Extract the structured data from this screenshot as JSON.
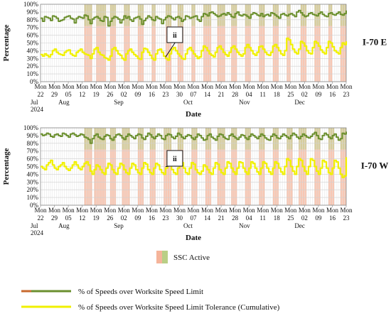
{
  "chart_data": {
    "type": "line",
    "x_axis": {
      "label": "Date",
      "range": [
        "2024-07-22",
        "2024-12-23"
      ],
      "tick_days": [
        "Mon",
        "Mon",
        "Mon",
        "Mon",
        "Mon",
        "Mon",
        "Mon",
        "Mon",
        "Mon",
        "Mon",
        "Mon",
        "Mon",
        "Mon",
        "Mon",
        "Mon",
        "Mon",
        "Mon",
        "Mon",
        "Mon",
        "Mon",
        "Mon",
        "Mon",
        "Mon"
      ],
      "tick_dates": [
        "22",
        "29",
        "05",
        "12",
        "19",
        "26",
        "02",
        "09",
        "16",
        "23",
        "30",
        "07",
        "14",
        "21",
        "28",
        "04",
        "11",
        "18",
        "25",
        "02",
        "09",
        "16",
        "23"
      ],
      "month_labels": [
        {
          "index": 0,
          "text": "Jul"
        },
        {
          "index": 0,
          "text": "2024",
          "row": 2
        },
        {
          "index": 2,
          "text": "Aug"
        },
        {
          "index": 6,
          "text": "Sep"
        },
        {
          "index": 11,
          "text": "Oct"
        },
        {
          "index": 15,
          "text": "Nov"
        },
        {
          "index": 19,
          "text": "Dec"
        }
      ]
    },
    "y_axis": {
      "label": "Percentage",
      "range": [
        0,
        100
      ],
      "ticks": [
        "0%",
        "10%",
        "20%",
        "30%",
        "40%",
        "50%",
        "60%",
        "70%",
        "80%",
        "90%",
        "100%"
      ]
    },
    "grid": true,
    "panels": [
      {
        "label": "I-70 E",
        "callout": "ii",
        "callout_date": "2024-09-23",
        "ssc_active_days": [
          [
            22,
            26
          ],
          [
            28,
            33
          ],
          [
            35,
            38
          ],
          [
            42,
            45
          ],
          [
            49,
            52
          ],
          [
            56,
            58
          ],
          [
            63,
            66
          ],
          [
            69,
            72
          ],
          [
            76,
            78
          ],
          [
            82,
            86
          ],
          [
            89,
            93
          ],
          [
            96,
            99
          ],
          [
            103,
            106
          ],
          [
            110,
            113
          ],
          [
            117,
            120
          ],
          [
            124,
            126
          ],
          [
            131,
            134
          ],
          [
            138,
            141
          ],
          [
            145,
            147
          ],
          [
            151,
            154
          ]
        ],
        "series": [
          {
            "name": "% of Speeds over Worksite Speed Limit",
            "color": "#6b8f2e",
            "values": [
              82,
              78,
              84,
              83,
              82,
              79,
              85,
              84,
              82,
              78,
              79,
              80,
              83,
              84,
              85,
              82,
              81,
              76,
              82,
              84,
              83,
              82,
              86,
              85,
              80,
              75,
              81,
              83,
              84,
              82,
              79,
              78,
              84,
              83,
              72,
              78,
              82,
              84,
              83,
              81,
              76,
              80,
              85,
              82,
              84,
              80,
              78,
              82,
              83,
              84,
              81,
              74,
              79,
              82,
              85,
              83,
              80,
              79,
              84,
              82,
              81,
              75,
              80,
              83,
              85,
              84,
              82,
              80,
              83,
              84,
              82,
              78,
              80,
              85,
              84,
              82,
              83,
              84,
              85,
              80,
              78,
              84,
              88,
              87,
              85,
              89,
              90,
              88,
              86,
              84,
              85,
              87,
              88,
              86,
              89,
              87,
              84,
              83,
              88,
              90,
              86,
              85,
              87,
              86,
              84,
              82,
              87,
              89,
              88,
              86,
              85,
              88,
              84,
              86,
              87,
              85,
              89,
              88,
              86,
              84,
              82,
              87,
              88,
              86,
              85,
              87,
              88,
              86,
              84,
              90,
              92,
              89,
              86,
              84,
              85,
              88,
              89,
              87,
              86,
              85,
              88,
              90,
              87,
              85,
              84,
              88,
              89,
              87,
              86,
              88,
              90,
              87,
              86,
              88,
              92
            ]
          },
          {
            "name": "% of Speeds over Worksite Speed Limit Tolerance (Cumulative)",
            "color": "#f0f000",
            "values": [
              35,
              33,
              36,
              34,
              32,
              35,
              40,
              42,
              38,
              36,
              35,
              34,
              38,
              40,
              41,
              36,
              34,
              33,
              38,
              40,
              42,
              38,
              36,
              35,
              34,
              30,
              36,
              42,
              44,
              38,
              35,
              34,
              31,
              30,
              28,
              33,
              42,
              44,
              40,
              36,
              34,
              30,
              28,
              36,
              40,
              42,
              38,
              35,
              33,
              30,
              29,
              38,
              43,
              42,
              38,
              34,
              30,
              28,
              36,
              41,
              42,
              38,
              33,
              30,
              28,
              36,
              42,
              44,
              40,
              36,
              33,
              30,
              29,
              36,
              42,
              44,
              40,
              36,
              33,
              30,
              32,
              40,
              46,
              44,
              40,
              36,
              34,
              32,
              38,
              44,
              46,
              42,
              38,
              35,
              33,
              38,
              44,
              46,
              42,
              38,
              35,
              33,
              36,
              44,
              48,
              44,
              40,
              36,
              34,
              38,
              45,
              46,
              42,
              38,
              35,
              34,
              38,
              46,
              48,
              44,
              40,
              36,
              34,
              40,
              56,
              54,
              48,
              42,
              38,
              36,
              42,
              52,
              50,
              46,
              40,
              37,
              36,
              44,
              52,
              50,
              46,
              41,
              38,
              36,
              44,
              52,
              50,
              45,
              40,
              38,
              36,
              44,
              50,
              48,
              52
            ]
          }
        ]
      },
      {
        "label": "I-70 W",
        "callout": "ii",
        "callout_date": "2024-09-23",
        "ssc_active_days": [
          [
            22,
            26
          ],
          [
            27,
            33
          ],
          [
            35,
            38
          ],
          [
            41,
            45
          ],
          [
            49,
            52
          ],
          [
            55,
            58
          ],
          [
            62,
            66
          ],
          [
            69,
            72
          ],
          [
            76,
            79
          ],
          [
            83,
            86
          ],
          [
            89,
            93
          ],
          [
            96,
            99
          ],
          [
            103,
            106
          ],
          [
            110,
            113
          ],
          [
            117,
            120
          ],
          [
            124,
            127
          ],
          [
            130,
            134
          ],
          [
            138,
            141
          ],
          [
            145,
            148
          ],
          [
            151,
            154
          ]
        ],
        "series": [
          {
            "name": "% of Speeds over Worksite Speed Limit",
            "color": "#6b8f2e",
            "values": [
              92,
              90,
              91,
              93,
              92,
              89,
              88,
              91,
              92,
              90,
              89,
              93,
              92,
              90,
              88,
              92,
              93,
              91,
              89,
              90,
              92,
              91,
              88,
              87,
              85,
              80,
              86,
              90,
              92,
              88,
              86,
              85,
              89,
              91,
              90,
              86,
              84,
              88,
              91,
              92,
              90,
              87,
              85,
              89,
              92,
              90,
              88,
              86,
              90,
              92,
              91,
              87,
              85,
              89,
              93,
              91,
              88,
              86,
              89,
              92,
              90,
              86,
              85,
              90,
              92,
              91,
              88,
              86,
              89,
              93,
              91,
              88,
              86,
              89,
              91,
              90,
              87,
              85,
              88,
              92,
              90,
              87,
              84,
              85,
              90,
              92,
              88,
              86,
              84,
              89,
              92,
              91,
              88,
              86,
              85,
              90,
              92,
              89,
              87,
              85,
              88,
              91,
              90,
              87,
              85,
              89,
              92,
              90,
              88,
              86,
              89,
              92,
              90,
              87,
              85,
              84,
              89,
              92,
              90,
              87,
              86,
              89,
              92,
              90,
              88,
              86,
              90,
              93,
              91,
              88,
              86,
              89,
              92,
              90,
              88,
              87,
              89,
              92,
              94,
              90,
              86,
              85,
              90,
              93,
              91,
              88,
              86,
              90,
              92,
              88,
              84,
              86,
              93,
              92,
              95
            ]
          },
          {
            "name": "% of Speeds over Worksite Speed Limit Tolerance (Cumulative)",
            "color": "#f0f000",
            "values": [
              50,
              48,
              46,
              52,
              55,
              58,
              52,
              48,
              46,
              50,
              52,
              55,
              50,
              47,
              45,
              48,
              52,
              56,
              52,
              48,
              46,
              50,
              54,
              56,
              52,
              44,
              40,
              46,
              52,
              50,
              46,
              42,
              40,
              48,
              54,
              52,
              46,
              42,
              40,
              48,
              54,
              52,
              46,
              42,
              40,
              48,
              54,
              52,
              46,
              42,
              40,
              48,
              55,
              53,
              46,
              42,
              40,
              48,
              54,
              52,
              46,
              42,
              40,
              48,
              55,
              53,
              46,
              42,
              40,
              48,
              56,
              55,
              48,
              42,
              40,
              48,
              55,
              53,
              46,
              42,
              40,
              44,
              52,
              50,
              46,
              42,
              40,
              48,
              55,
              53,
              46,
              42,
              40,
              48,
              56,
              54,
              48,
              43,
              40,
              48,
              56,
              55,
              48,
              43,
              40,
              48,
              56,
              54,
              48,
              43,
              40,
              48,
              56,
              54,
              48,
              43,
              40,
              48,
              56,
              54,
              48,
              43,
              40,
              50,
              60,
              58,
              50,
              44,
              40,
              50,
              60,
              58,
              50,
              44,
              40,
              50,
              60,
              58,
              50,
              44,
              40,
              48,
              58,
              56,
              48,
              42,
              40,
              48,
              58,
              56,
              48,
              40,
              36,
              38,
              62
            ]
          }
        ]
      }
    ],
    "legend": [
      {
        "label": "SSC Active",
        "kind": "swatch"
      },
      {
        "label": "% of Speeds over Worksite Speed Limit",
        "kind": "line",
        "color": "#6b8f2e"
      },
      {
        "label": "% of Speeds over Worksite Speed Limit Tolerance (Cumulative)",
        "kind": "line",
        "color": "#f0f000"
      }
    ]
  }
}
